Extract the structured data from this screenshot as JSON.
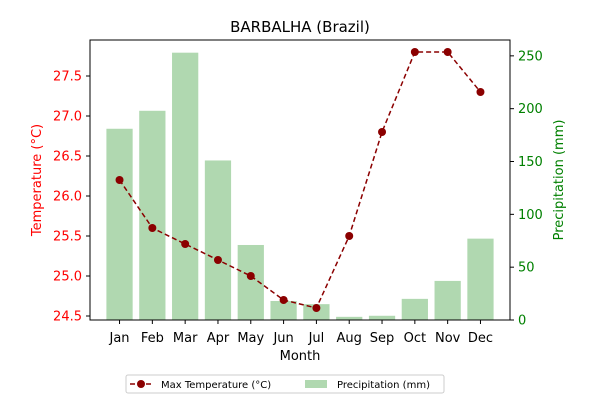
{
  "chart_data": {
    "type": "bar+line",
    "title": "BARBALHA (Brazil)",
    "xlabel": "Month",
    "categories": [
      "Jan",
      "Feb",
      "Mar",
      "Apr",
      "May",
      "Jun",
      "Jul",
      "Aug",
      "Sep",
      "Oct",
      "Nov",
      "Dec"
    ],
    "left_axis": {
      "label": "Temperature (°C)",
      "ylim": [
        24.45,
        27.95
      ],
      "ticks": [
        "24.5",
        "25.0",
        "25.5",
        "26.0",
        "26.5",
        "27.0",
        "27.5"
      ],
      "color": "#ff0000"
    },
    "right_axis": {
      "label": "Precipitation (mm)",
      "ylim": [
        0,
        265
      ],
      "ticks": [
        "0",
        "50",
        "100",
        "150",
        "200",
        "250"
      ],
      "color": "#008000"
    },
    "series": [
      {
        "name": "Max Temperature (°C)",
        "kind": "line",
        "axis": "left",
        "color": "#8b0000",
        "values": [
          26.2,
          25.6,
          25.4,
          25.2,
          25.0,
          24.7,
          24.6,
          25.5,
          26.8,
          27.8,
          27.8,
          27.3
        ]
      },
      {
        "name": "Precipitation (mm)",
        "kind": "bar",
        "axis": "right",
        "color": "#b0d8b0",
        "values": [
          181,
          198,
          253,
          151,
          71,
          18,
          15,
          3,
          4,
          20,
          37,
          77
        ]
      }
    ],
    "legend": "bottom-center",
    "grid": false
  }
}
